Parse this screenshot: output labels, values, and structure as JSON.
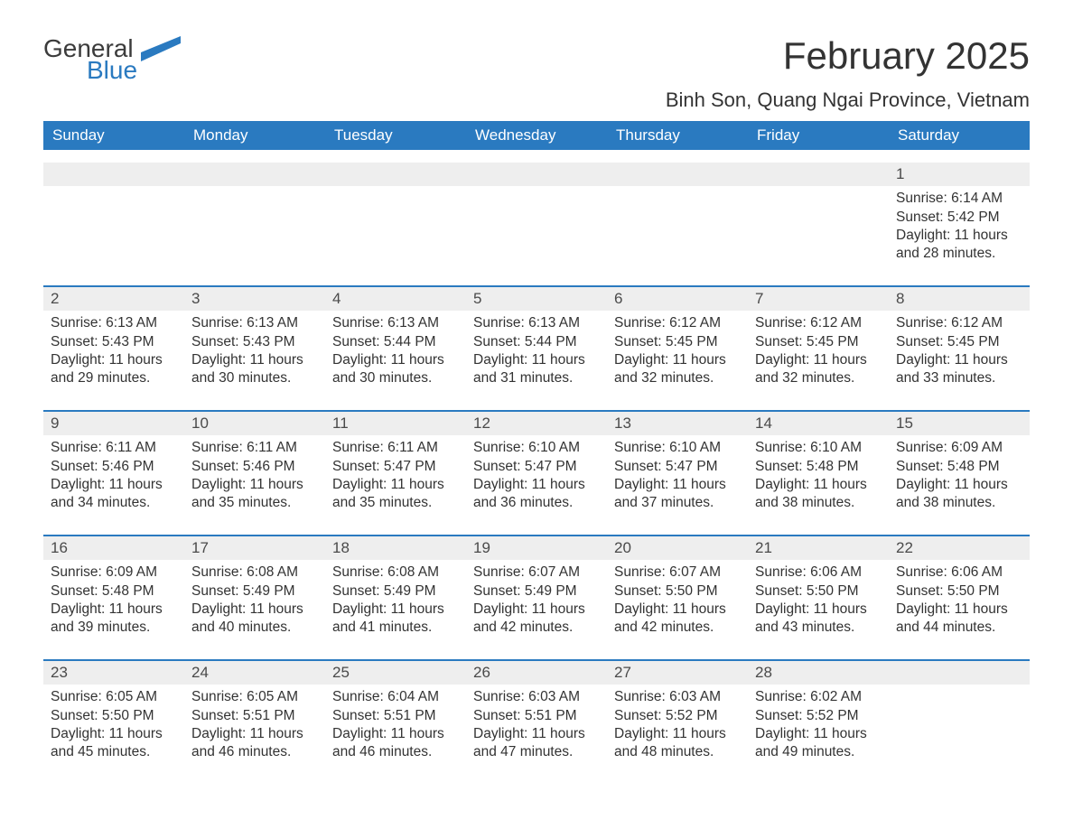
{
  "logo": {
    "top": "General",
    "bottom": "Blue",
    "accent_color": "#2a7ac0"
  },
  "header": {
    "title": "February 2025",
    "subtitle": "Binh Son, Quang Ngai Province, Vietnam"
  },
  "colors": {
    "header_bg": "#2a7ac0",
    "header_text": "#ffffff",
    "daynum_bg": "#eeeeee",
    "week_divider": "#2a7ac0",
    "page_bg": "#ffffff",
    "text": "#333333"
  },
  "days_of_week": [
    "Sunday",
    "Monday",
    "Tuesday",
    "Wednesday",
    "Thursday",
    "Friday",
    "Saturday"
  ],
  "weeks": [
    [
      null,
      null,
      null,
      null,
      null,
      null,
      {
        "n": "1",
        "sunrise": "6:14 AM",
        "sunset": "5:42 PM",
        "daylight": "11 hours and 28 minutes."
      }
    ],
    [
      {
        "n": "2",
        "sunrise": "6:13 AM",
        "sunset": "5:43 PM",
        "daylight": "11 hours and 29 minutes."
      },
      {
        "n": "3",
        "sunrise": "6:13 AM",
        "sunset": "5:43 PM",
        "daylight": "11 hours and 30 minutes."
      },
      {
        "n": "4",
        "sunrise": "6:13 AM",
        "sunset": "5:44 PM",
        "daylight": "11 hours and 30 minutes."
      },
      {
        "n": "5",
        "sunrise": "6:13 AM",
        "sunset": "5:44 PM",
        "daylight": "11 hours and 31 minutes."
      },
      {
        "n": "6",
        "sunrise": "6:12 AM",
        "sunset": "5:45 PM",
        "daylight": "11 hours and 32 minutes."
      },
      {
        "n": "7",
        "sunrise": "6:12 AM",
        "sunset": "5:45 PM",
        "daylight": "11 hours and 32 minutes."
      },
      {
        "n": "8",
        "sunrise": "6:12 AM",
        "sunset": "5:45 PM",
        "daylight": "11 hours and 33 minutes."
      }
    ],
    [
      {
        "n": "9",
        "sunrise": "6:11 AM",
        "sunset": "5:46 PM",
        "daylight": "11 hours and 34 minutes."
      },
      {
        "n": "10",
        "sunrise": "6:11 AM",
        "sunset": "5:46 PM",
        "daylight": "11 hours and 35 minutes."
      },
      {
        "n": "11",
        "sunrise": "6:11 AM",
        "sunset": "5:47 PM",
        "daylight": "11 hours and 35 minutes."
      },
      {
        "n": "12",
        "sunrise": "6:10 AM",
        "sunset": "5:47 PM",
        "daylight": "11 hours and 36 minutes."
      },
      {
        "n": "13",
        "sunrise": "6:10 AM",
        "sunset": "5:47 PM",
        "daylight": "11 hours and 37 minutes."
      },
      {
        "n": "14",
        "sunrise": "6:10 AM",
        "sunset": "5:48 PM",
        "daylight": "11 hours and 38 minutes."
      },
      {
        "n": "15",
        "sunrise": "6:09 AM",
        "sunset": "5:48 PM",
        "daylight": "11 hours and 38 minutes."
      }
    ],
    [
      {
        "n": "16",
        "sunrise": "6:09 AM",
        "sunset": "5:48 PM",
        "daylight": "11 hours and 39 minutes."
      },
      {
        "n": "17",
        "sunrise": "6:08 AM",
        "sunset": "5:49 PM",
        "daylight": "11 hours and 40 minutes."
      },
      {
        "n": "18",
        "sunrise": "6:08 AM",
        "sunset": "5:49 PM",
        "daylight": "11 hours and 41 minutes."
      },
      {
        "n": "19",
        "sunrise": "6:07 AM",
        "sunset": "5:49 PM",
        "daylight": "11 hours and 42 minutes."
      },
      {
        "n": "20",
        "sunrise": "6:07 AM",
        "sunset": "5:50 PM",
        "daylight": "11 hours and 42 minutes."
      },
      {
        "n": "21",
        "sunrise": "6:06 AM",
        "sunset": "5:50 PM",
        "daylight": "11 hours and 43 minutes."
      },
      {
        "n": "22",
        "sunrise": "6:06 AM",
        "sunset": "5:50 PM",
        "daylight": "11 hours and 44 minutes."
      }
    ],
    [
      {
        "n": "23",
        "sunrise": "6:05 AM",
        "sunset": "5:50 PM",
        "daylight": "11 hours and 45 minutes."
      },
      {
        "n": "24",
        "sunrise": "6:05 AM",
        "sunset": "5:51 PM",
        "daylight": "11 hours and 46 minutes."
      },
      {
        "n": "25",
        "sunrise": "6:04 AM",
        "sunset": "5:51 PM",
        "daylight": "11 hours and 46 minutes."
      },
      {
        "n": "26",
        "sunrise": "6:03 AM",
        "sunset": "5:51 PM",
        "daylight": "11 hours and 47 minutes."
      },
      {
        "n": "27",
        "sunrise": "6:03 AM",
        "sunset": "5:52 PM",
        "daylight": "11 hours and 48 minutes."
      },
      {
        "n": "28",
        "sunrise": "6:02 AM",
        "sunset": "5:52 PM",
        "daylight": "11 hours and 49 minutes."
      },
      null
    ]
  ],
  "labels": {
    "sunrise": "Sunrise: ",
    "sunset": "Sunset: ",
    "daylight": "Daylight: "
  }
}
